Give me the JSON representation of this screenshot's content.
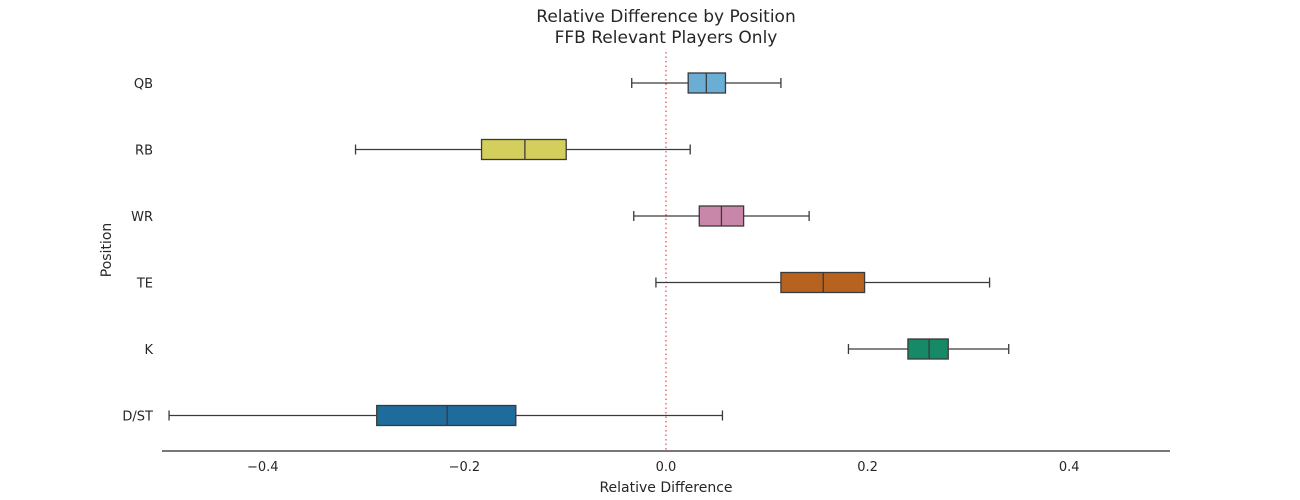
{
  "chart_data": {
    "type": "boxplot",
    "orientation": "horizontal",
    "title_line1": "Relative Difference by Position",
    "title_line2": "FFB Relevant Players Only",
    "xlabel": "Relative Difference",
    "ylabel": "Position",
    "xlim": [
      -0.5,
      0.5
    ],
    "xticks": [
      {
        "value": -0.4,
        "label": "−0.4"
      },
      {
        "value": -0.2,
        "label": "−0.2"
      },
      {
        "value": 0.0,
        "label": "0.0"
      },
      {
        "value": 0.2,
        "label": "0.2"
      },
      {
        "value": 0.4,
        "label": "0.4"
      }
    ],
    "reference_line": {
      "x": 0.0,
      "style": "dotted",
      "color": "#d62728"
    },
    "grid": false,
    "categories": [
      {
        "name": "QB",
        "whisker_low": -0.034,
        "q1": 0.022,
        "median": 0.04,
        "q3": 0.059,
        "whisker_high": 0.114,
        "color": "#6aaed6"
      },
      {
        "name": "RB",
        "whisker_low": -0.308,
        "q1": -0.183,
        "median": -0.14,
        "q3": -0.099,
        "whisker_high": 0.024,
        "color": "#d4cf5c"
      },
      {
        "name": "WR",
        "whisker_low": -0.032,
        "q1": 0.033,
        "median": 0.055,
        "q3": 0.077,
        "whisker_high": 0.142,
        "color": "#c887a8"
      },
      {
        "name": "TE",
        "whisker_low": -0.01,
        "q1": 0.114,
        "median": 0.156,
        "q3": 0.197,
        "whisker_high": 0.321,
        "color": "#b8621f"
      },
      {
        "name": "K",
        "whisker_low": 0.181,
        "q1": 0.24,
        "median": 0.261,
        "q3": 0.28,
        "whisker_high": 0.34,
        "color": "#168a67"
      },
      {
        "name": "D/ST",
        "whisker_low": -0.493,
        "q1": -0.287,
        "median": -0.217,
        "q3": -0.149,
        "whisker_high": 0.056,
        "color": "#1f6b9b"
      }
    ]
  }
}
